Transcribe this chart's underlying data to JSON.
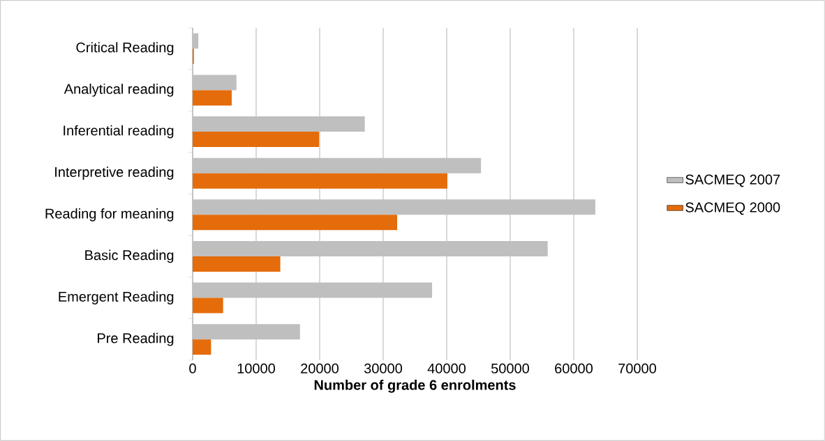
{
  "chart_data": {
    "type": "bar",
    "orientation": "horizontal",
    "xlabel": "Number of grade 6 enrolments",
    "categories": [
      "Critical Reading",
      "Analytical reading",
      "Inferential reading",
      "Interpretive reading",
      "Reading for meaning",
      "Basic Reading",
      "Emergent Reading",
      "Pre Reading"
    ],
    "series": [
      {
        "name": "SACMEQ 2007",
        "color": "#bfbfbf",
        "values": [
          900,
          6900,
          27100,
          45400,
          63400,
          55900,
          37700,
          16900
        ]
      },
      {
        "name": "SACMEQ 2000",
        "color": "#e46c0a",
        "values": [
          200,
          6150,
          19900,
          40100,
          32200,
          13800,
          4800,
          2900
        ]
      }
    ],
    "xlim": [
      0,
      70000
    ],
    "xticks": [
      0,
      10000,
      20000,
      30000,
      40000,
      50000,
      60000,
      70000
    ],
    "grid": "x",
    "legend": "right"
  }
}
